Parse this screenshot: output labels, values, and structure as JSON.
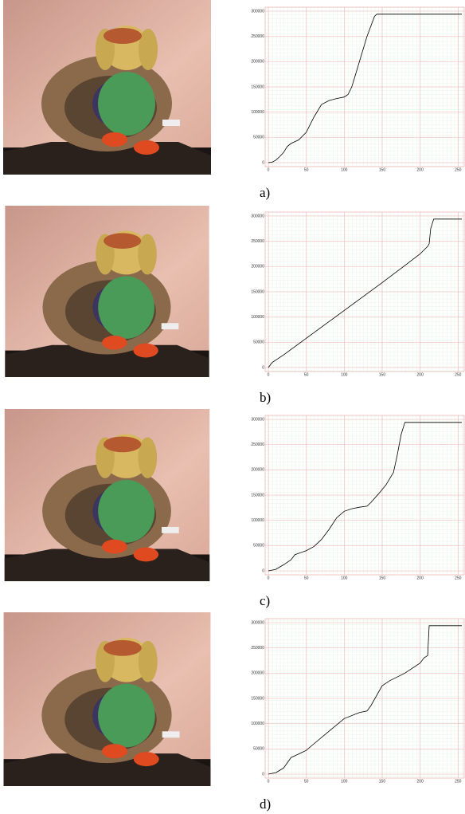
{
  "chart_data": [
    {
      "type": "line",
      "caption": "a)",
      "color": "#000000",
      "grid": true,
      "xlim": [
        0,
        255
      ],
      "ylim": [
        0,
        300000
      ],
      "xticks": [
        0,
        50,
        100,
        150,
        200,
        250
      ],
      "yticks": [
        0,
        50000,
        100000,
        150000,
        200000,
        250000,
        300000
      ],
      "x": [
        0,
        5,
        10,
        15,
        20,
        25,
        30,
        40,
        50,
        60,
        70,
        80,
        90,
        100,
        105,
        110,
        115,
        120,
        130,
        140,
        143,
        145,
        255
      ],
      "values": [
        0,
        1000,
        5000,
        12000,
        20000,
        32000,
        38000,
        45000,
        60000,
        90000,
        115000,
        123000,
        127000,
        130000,
        135000,
        150000,
        175000,
        200000,
        250000,
        290000,
        294000,
        294000,
        294000
      ]
    },
    {
      "type": "line",
      "caption": "b)",
      "color": "#000000",
      "grid": true,
      "xlim": [
        0,
        255
      ],
      "ylim": [
        0,
        300000
      ],
      "xticks": [
        0,
        50,
        100,
        150,
        200,
        250
      ],
      "yticks": [
        0,
        50000,
        100000,
        150000,
        200000,
        250000,
        300000
      ],
      "x": [
        0,
        5,
        20,
        50,
        100,
        150,
        200,
        210,
        212,
        214,
        218,
        255
      ],
      "values": [
        0,
        10000,
        25000,
        58000,
        113000,
        168000,
        225000,
        240000,
        245000,
        275000,
        294000,
        294000
      ]
    },
    {
      "type": "line",
      "caption": "c)",
      "color": "#000000",
      "grid": true,
      "xlim": [
        0,
        255
      ],
      "ylim": [
        0,
        300000
      ],
      "xticks": [
        0,
        50,
        100,
        150,
        200,
        250
      ],
      "yticks": [
        0,
        50000,
        100000,
        150000,
        200000,
        250000,
        300000
      ],
      "x": [
        0,
        10,
        20,
        30,
        35,
        50,
        60,
        70,
        80,
        90,
        100,
        110,
        120,
        130,
        135,
        145,
        155,
        165,
        170,
        175,
        180,
        255
      ],
      "values": [
        0,
        3000,
        12000,
        22000,
        32000,
        40000,
        48000,
        62000,
        82000,
        105000,
        118000,
        123000,
        126000,
        128000,
        135000,
        152000,
        170000,
        195000,
        230000,
        270000,
        294000,
        294000
      ]
    },
    {
      "type": "line",
      "caption": "d)",
      "color": "#000000",
      "grid": true,
      "xlim": [
        0,
        255
      ],
      "ylim": [
        0,
        300000
      ],
      "xticks": [
        0,
        50,
        100,
        150,
        200,
        250
      ],
      "yticks": [
        0,
        50000,
        100000,
        150000,
        200000,
        250000,
        300000
      ],
      "x": [
        0,
        10,
        20,
        30,
        40,
        50,
        60,
        80,
        100,
        120,
        130,
        135,
        150,
        160,
        180,
        200,
        205,
        210,
        212,
        255
      ],
      "values": [
        0,
        3000,
        12000,
        33000,
        40000,
        47000,
        60000,
        85000,
        110000,
        122000,
        125000,
        135000,
        175000,
        185000,
        200000,
        220000,
        230000,
        235000,
        294000,
        294000
      ]
    }
  ]
}
